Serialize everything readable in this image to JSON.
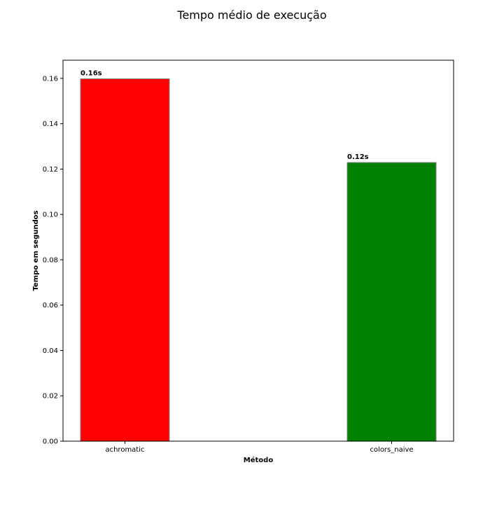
{
  "chart_data": {
    "type": "bar",
    "title": "Tempo médio de execução",
    "xlabel": "Método",
    "ylabel": "Tempo em segundos",
    "categories": [
      "achromatic",
      "colors_naive"
    ],
    "values": [
      0.1598,
      0.1229
    ],
    "data_labels": [
      "0.16s",
      "0.12s"
    ],
    "colors": [
      "#ff0000",
      "#008000"
    ],
    "edge_color": "#808080",
    "ylim": [
      0,
      0.168
    ],
    "yticks": [
      "0.00",
      "0.02",
      "0.04",
      "0.06",
      "0.08",
      "0.10",
      "0.12",
      "0.14",
      "0.16"
    ],
    "grid": false,
    "legend": "none"
  }
}
